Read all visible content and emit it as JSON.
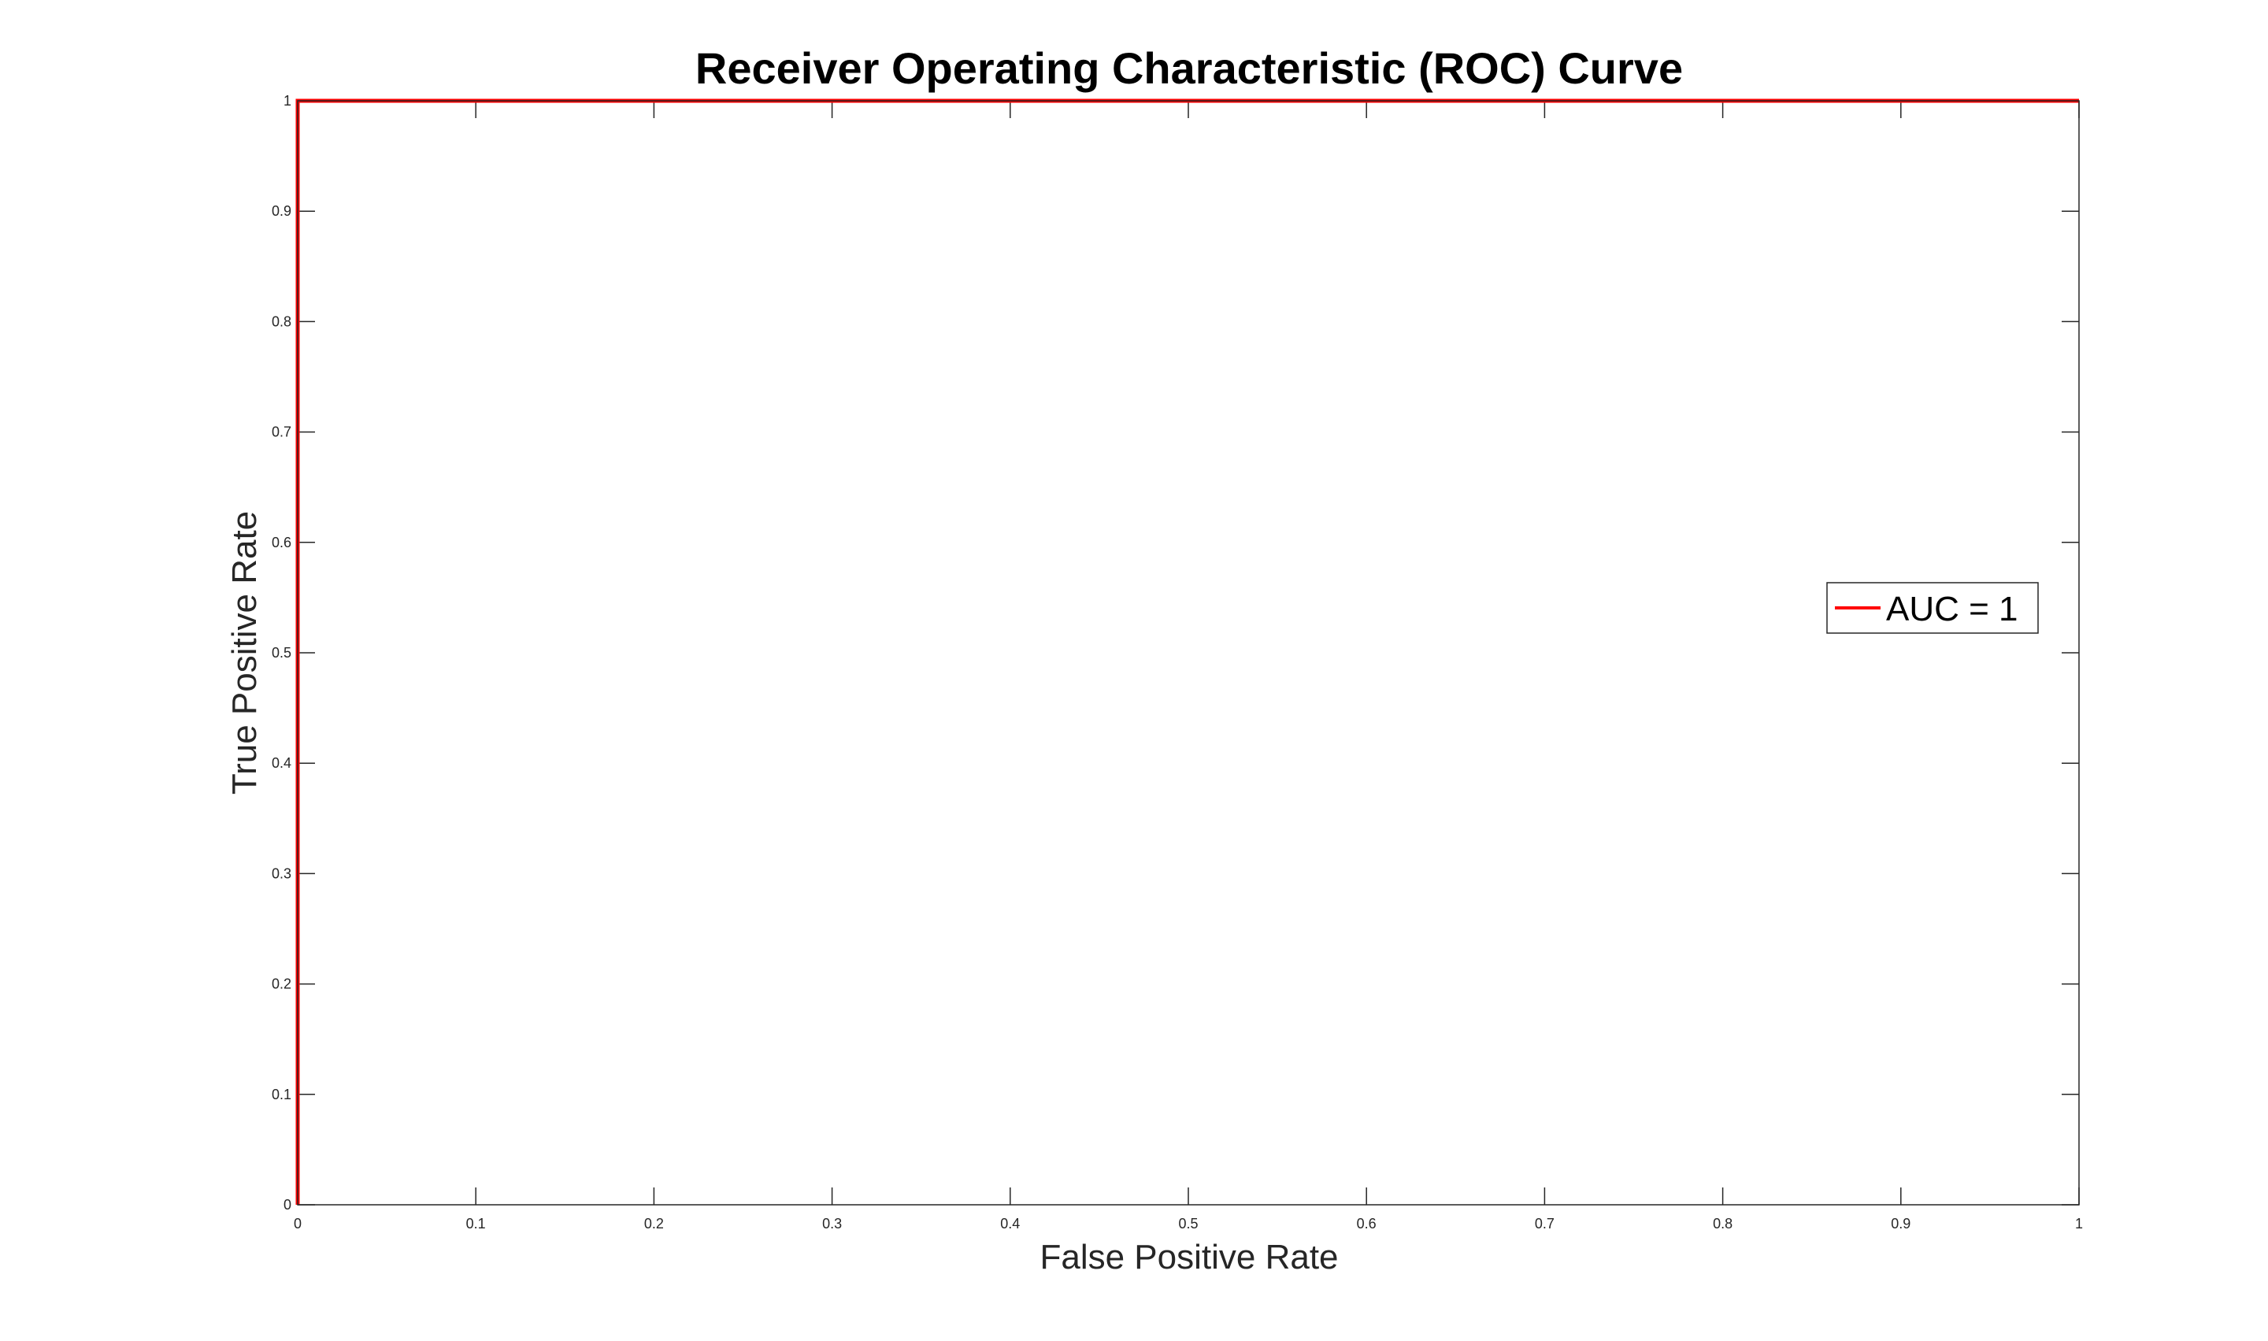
{
  "chart_data": {
    "type": "line",
    "title": "Receiver Operating Characteristic (ROC) Curve",
    "xlabel": "False Positive Rate",
    "ylabel": "True Positive Rate",
    "xlim": [
      0,
      1
    ],
    "ylim": [
      0,
      1
    ],
    "x_ticks": [
      0,
      0.1,
      0.2,
      0.3,
      0.4,
      0.5,
      0.6,
      0.7,
      0.8,
      0.9,
      1
    ],
    "x_tick_labels": [
      "0",
      "0.1",
      "0.2",
      "0.3",
      "0.4",
      "0.5",
      "0.6",
      "0.7",
      "0.8",
      "0.9",
      "1"
    ],
    "y_ticks": [
      0,
      0.1,
      0.2,
      0.3,
      0.4,
      0.5,
      0.6,
      0.7,
      0.8,
      0.9,
      1
    ],
    "y_tick_labels": [
      "0",
      "0.1",
      "0.2",
      "0.3",
      "0.4",
      "0.5",
      "0.6",
      "0.7",
      "0.8",
      "0.9",
      "1"
    ],
    "grid": false,
    "legend_position": "right",
    "series": [
      {
        "name": "AUC = 1",
        "color": "#ff0000",
        "x": [
          0,
          0,
          1
        ],
        "y": [
          0,
          1,
          1
        ]
      }
    ]
  }
}
